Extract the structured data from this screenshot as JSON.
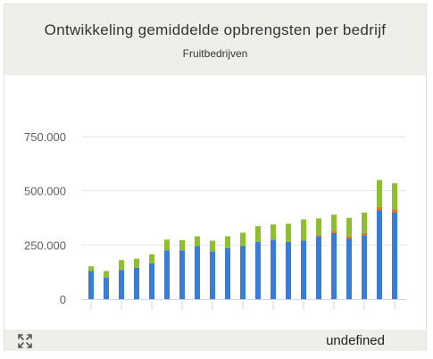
{
  "title": "Ontwikkeling gemiddelde opbrengsten per bedrijf",
  "subtitle": "Fruitbedrijven",
  "footer_text": "undefined",
  "icons": {
    "expand": "expand-arrows-icon"
  },
  "colors": {
    "blue": "#3a7dd8",
    "orange": "#e8761e",
    "green": "#8fbf2e",
    "grid": "#e6e6e6",
    "axis": "#ccd6eb"
  },
  "chart_data": {
    "type": "bar",
    "stacked": true,
    "title": "Ontwikkeling gemiddelde opbrengsten per bedrijf",
    "subtitle": "Fruitbedrijven",
    "xlabel": "",
    "ylabel": "",
    "ylim": [
      0,
      800000
    ],
    "yticks": [
      0,
      250000,
      500000,
      750000
    ],
    "ytick_labels": [
      "0",
      "250.000",
      "500.000",
      "750.000"
    ],
    "grid": true,
    "series": [
      {
        "color": "#3a7dd8",
        "values": [
          130000,
          100000,
          135000,
          145000,
          165000,
          225000,
          225000,
          245000,
          220000,
          235000,
          245000,
          265000,
          275000,
          265000,
          270000,
          290000,
          305000,
          280000,
          295000,
          410000,
          400000
        ]
      },
      {
        "color": "#e8761e",
        "values": [
          0,
          0,
          0,
          0,
          0,
          0,
          0,
          0,
          0,
          0,
          0,
          0,
          0,
          0,
          0,
          5000,
          10000,
          10000,
          10000,
          15000,
          15000
        ]
      },
      {
        "color": "#8fbf2e",
        "values": [
          22000,
          30000,
          45000,
          42000,
          42000,
          50000,
          47000,
          45000,
          50000,
          55000,
          62000,
          72000,
          70000,
          83000,
          98000,
          78000,
          75000,
          85000,
          95000,
          125000,
          120000
        ]
      }
    ]
  }
}
